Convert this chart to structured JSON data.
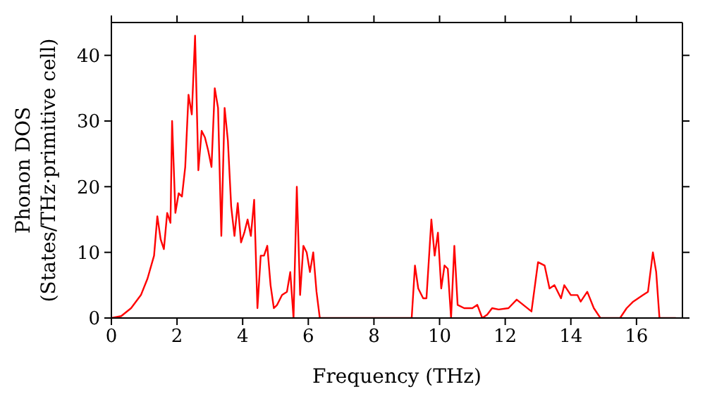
{
  "chart_data": {
    "type": "line",
    "xlabel": "Frequency (THz)",
    "ylabel": "Phonon DOS\n(States/THz·primitive cell)",
    "x": [
      0,
      0.3,
      0.6,
      0.9,
      1.1,
      1.3,
      1.4,
      1.5,
      1.6,
      1.7,
      1.8,
      1.85,
      1.95,
      2.05,
      2.15,
      2.25,
      2.35,
      2.45,
      2.55,
      2.65,
      2.75,
      2.85,
      2.95,
      3.05,
      3.15,
      3.25,
      3.35,
      3.45,
      3.55,
      3.65,
      3.75,
      3.85,
      3.95,
      4.05,
      4.15,
      4.25,
      4.35,
      4.45,
      4.55,
      4.65,
      4.75,
      4.85,
      4.95,
      5.05,
      5.2,
      5.35,
      5.45,
      5.55,
      5.65,
      5.75,
      5.85,
      5.95,
      6.05,
      6.15,
      6.25,
      6.35,
      9.15,
      9.25,
      9.35,
      9.5,
      9.6,
      9.75,
      9.85,
      9.95,
      10.05,
      10.15,
      10.25,
      10.35,
      10.45,
      10.55,
      10.75,
      11,
      11.15,
      11.3,
      11.45,
      11.6,
      11.8,
      12.1,
      12.35,
      12.8,
      13,
      13.2,
      13.35,
      13.5,
      13.7,
      13.8,
      14,
      14.2,
      14.3,
      14.5,
      14.7,
      14.9,
      15.5,
      15.7,
      15.9,
      16.2,
      16.35,
      16.5,
      16.6,
      16.7,
      17.2
    ],
    "series": [
      {
        "color": "#ff0000",
        "values": [
          0,
          0.3,
          1.5,
          3.5,
          6,
          9.5,
          15.5,
          12,
          10.5,
          16,
          14.5,
          30,
          16,
          19,
          18.5,
          23,
          34,
          31,
          43,
          22.5,
          28.5,
          27.5,
          25.5,
          23,
          35,
          32,
          12.5,
          32,
          27,
          17,
          12.5,
          17.5,
          11.5,
          13,
          15,
          12.5,
          18,
          1.5,
          9.5,
          9.5,
          11,
          5,
          1.5,
          2,
          3.5,
          4,
          7,
          0,
          20,
          3.5,
          11,
          10,
          7,
          10,
          4,
          0,
          0,
          8,
          4.5,
          3,
          3,
          15,
          9.5,
          13,
          4.5,
          8,
          7.5,
          0,
          11,
          2,
          1.5,
          1.5,
          2,
          0,
          0.5,
          1.5,
          1.3,
          1.5,
          2.8,
          1,
          8.5,
          8,
          4.5,
          5,
          3,
          5,
          3.5,
          3.5,
          2.5,
          4,
          1.5,
          0,
          0,
          1.5,
          2.5,
          3.5,
          4,
          10,
          7,
          0,
          0
        ]
      }
    ],
    "xlim": [
      0,
      17.4
    ],
    "xticks": [
      0,
      2,
      4,
      6,
      8,
      10,
      12,
      14,
      16
    ],
    "ylim": [
      0,
      45
    ],
    "yticks": [
      0,
      10,
      20,
      30,
      40
    ],
    "grid": false,
    "legend": false,
    "marker": "none",
    "line_style": "solid"
  }
}
